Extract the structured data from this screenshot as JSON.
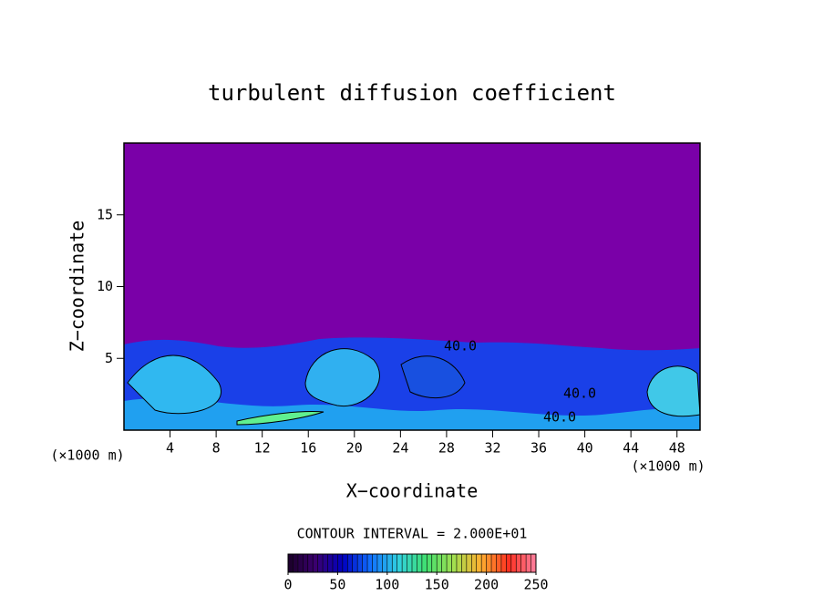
{
  "chart_data": {
    "type": "contour",
    "title": "turbulent diffusion coefficient",
    "x_label": "X−coordinate",
    "y_label": "Z−coordinate",
    "x_unit": "(×1000 m)",
    "x_unit_right": "(×1000 m)",
    "contour_interval": "CONTOUR INTERVAL = 2.000E+01",
    "contour_labels": [
      "40.0",
      "40.0",
      "40.0"
    ],
    "xlim": [
      0,
      50
    ],
    "xticks": [
      4,
      8,
      12,
      16,
      20,
      24,
      28,
      32,
      36,
      40,
      44,
      48
    ],
    "ylim": [
      0,
      20
    ],
    "yticks": [
      5,
      10,
      15
    ],
    "colorbar": {
      "range": [
        0,
        250
      ],
      "ticks": [
        0,
        50,
        100,
        150,
        200,
        250
      ],
      "colors": [
        "#1a0028",
        "#3a0070",
        "#0000c0",
        "#1070ff",
        "#30d0e0",
        "#40e070",
        "#a0e050",
        "#ffb030",
        "#ff3020",
        "#ff80a0"
      ]
    }
  }
}
